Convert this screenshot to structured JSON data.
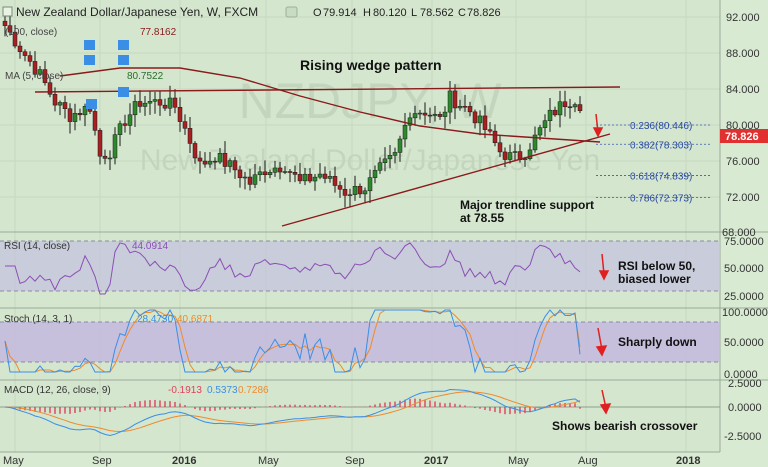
{
  "header": {
    "symbol_title": "New Zealand Dollar/Japanese Yen, W, FXCM",
    "ohlc": {
      "o_label": "O",
      "o": "79.914",
      "h_label": "H",
      "h": "80.120",
      "l_label": "L",
      "l": "78.562",
      "c_label": "C",
      "c": "78.826"
    },
    "sma100": {
      "label": "(100, close)",
      "value": "77.8162"
    },
    "ma5": {
      "label": "MA (5, close)",
      "value": "80.7522"
    }
  },
  "watermark": {
    "big": "NZDJPY, W",
    "small": "New Zealand Dollar/Japanese Yen"
  },
  "annotations": {
    "wedge_title": "Rising wedge pattern",
    "support_line1": "Major trendline support",
    "support_line2": "at 78.55",
    "rsi_line1": "RSI below 50,",
    "rsi_line2": "biased lower",
    "stoch_note": "Sharply down",
    "macd_note": "Shows bearish crossover"
  },
  "fib_levels": [
    {
      "label": "0.236(80.446)",
      "value": 80.446
    },
    {
      "label": "0.382(78.303)",
      "value": 78.303
    },
    {
      "label": "0.618(74.839)",
      "value": 74.839
    },
    {
      "label": "0.786(72.373)",
      "value": 72.373
    }
  ],
  "price_axis": {
    "ticks": [
      "92.000",
      "88.000",
      "84.000",
      "80.000",
      "76.000",
      "72.000",
      "68.000"
    ],
    "current_price": "78.826",
    "current_color": "#e03030",
    "range": [
      67.5,
      93.5
    ]
  },
  "rsi_panel": {
    "label": "RSI (14, close)",
    "value": "44.0914",
    "ticks": [
      "75.0000",
      "50.0000",
      "25.0000"
    ]
  },
  "stoch_panel": {
    "label": "Stoch (14, 3, 1)",
    "k": "28.4730",
    "d": "40.6871",
    "ticks": [
      "100.0000",
      "50.0000",
      "0.0000"
    ]
  },
  "macd_panel": {
    "label": "MACD (12, 26, close, 9)",
    "hist": "-0.1913",
    "macd": "0.5373",
    "signal": "0.7286",
    "ticks": [
      "2.5000",
      "0.0000",
      "-2.5000"
    ]
  },
  "time_axis": {
    "labels": [
      "May",
      "Sep",
      "2016",
      "May",
      "Sep",
      "2017",
      "May",
      "Aug",
      "2018"
    ]
  },
  "colors": {
    "bull": "#2c8a2c",
    "bear": "#a82020",
    "trendline": "#8b1a1a",
    "sma": "#8b1a1a",
    "rsi": "#8a4fb4",
    "stoch_k": "#3a8ee6",
    "stoch_d": "#f08a2a",
    "macd": "#3a8ee6",
    "signal": "#f08a2a",
    "hist": "#e0405a",
    "arrow": "#e02020",
    "band": "#9a9ac8"
  },
  "chart_data": {
    "type": "candlestick",
    "title": "New Zealand Dollar/Japanese Yen, W, FXCM",
    "ylim": [
      67.5,
      93.5
    ],
    "last_bar": {
      "open": 79.914,
      "high": 80.12,
      "low": 78.562,
      "close": 78.826
    },
    "indicators": {
      "sma100": 77.8162,
      "ma5": 80.7522,
      "rsi14": 44.0914,
      "stoch_k": 28.473,
      "stoch_d": 40.6871,
      "macd_hist": -0.1913,
      "macd": 0.5373,
      "macd_signal": 0.7286
    }
  }
}
